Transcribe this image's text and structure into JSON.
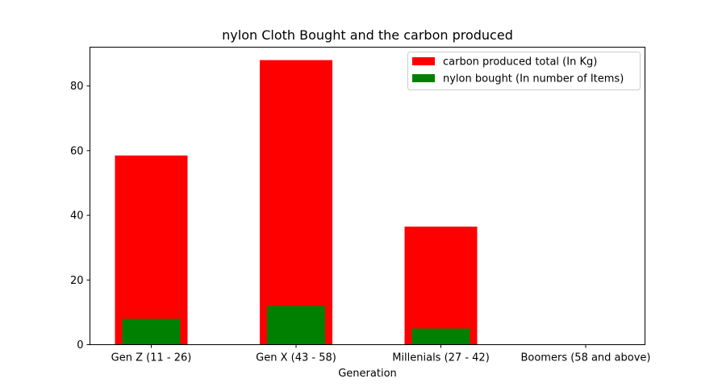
{
  "chart_data": {
    "type": "bar",
    "title": "nylon Cloth Bought and the carbon produced",
    "xlabel": "Generation",
    "ylabel": "",
    "categories": [
      "Gen Z (11 - 26)",
      "Gen X (43 - 58)",
      "Millenials (27 - 42)",
      "Boomers (58 and above)"
    ],
    "series": [
      {
        "name": "carbon produced total (In Kg)",
        "values": [
          58.5,
          88,
          36.5,
          0
        ],
        "color": "#ff0000"
      },
      {
        "name": "nylon bought (In number of Items)",
        "values": [
          8,
          12,
          5,
          0
        ],
        "color": "#008000"
      }
    ],
    "ylim": [
      0,
      92
    ],
    "yticks": [
      0,
      20,
      40,
      60,
      80
    ],
    "grid": false,
    "legend_position": "top-right"
  }
}
